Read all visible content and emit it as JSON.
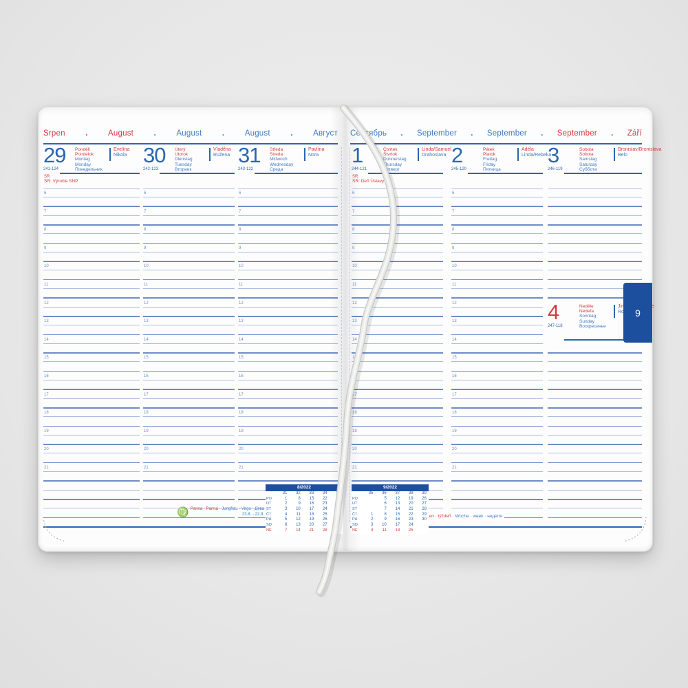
{
  "left_page": {
    "months": [
      {
        "t": "Srpen",
        "c": "red"
      },
      {
        "t": "August",
        "c": "red"
      },
      {
        "t": "August",
        "c": "blue"
      },
      {
        "t": "August",
        "c": "blue"
      },
      {
        "t": "Август",
        "c": "blue"
      }
    ],
    "days": [
      {
        "num": "29",
        "doy": "241-124",
        "marker": "SR",
        "local": [
          "Pondělí",
          "Pondelok"
        ],
        "intl": [
          "Montag",
          "Monday",
          "Понедельник"
        ],
        "name_cz": "Evelína",
        "name_sk": "Nikola",
        "holiday": "SR: Výročie SNP",
        "col": 0,
        "pos": "full",
        "numbered": true,
        "red": false
      },
      {
        "num": "30",
        "doy": "242-123",
        "local": [
          "Úterý",
          "Utorok"
        ],
        "intl": [
          "Dienstag",
          "Tuesday",
          "Вторник"
        ],
        "name_cz": "Vladěna",
        "name_sk": "Ružena",
        "col": 1,
        "pos": "full",
        "numbered": true,
        "red": false
      },
      {
        "num": "31",
        "doy": "243-122",
        "local": [
          "Středa",
          "Streda"
        ],
        "intl": [
          "Mittwoch",
          "Wednesday",
          "Среда"
        ],
        "name_cz": "Pavlína",
        "name_sk": "Nora",
        "col": 2,
        "pos": "full",
        "numbered": true,
        "red": false
      }
    ],
    "zodiac": {
      "symbol": "♍",
      "red": "Panna · Panna",
      "blue": " · Jungfrau · Virgo · Дева",
      "dates": "23.8. - 22.9."
    },
    "mini_calendar": {
      "title": "8/2022",
      "weeks": [
        "31",
        "32",
        "33",
        "34",
        "35"
      ],
      "rows": [
        {
          "d": "PO",
          "n": [
            "1",
            "8",
            "15",
            "22",
            "29"
          ],
          "red": false
        },
        {
          "d": "ÚT",
          "n": [
            "2",
            "9",
            "16",
            "23",
            "30"
          ],
          "red": false
        },
        {
          "d": "ST",
          "n": [
            "3",
            "10",
            "17",
            "24",
            "31"
          ],
          "red": false
        },
        {
          "d": "ČT",
          "n": [
            "4",
            "11",
            "18",
            "25",
            ""
          ],
          "red": false
        },
        {
          "d": "PÁ",
          "n": [
            "5",
            "12",
            "19",
            "26",
            ""
          ],
          "red": false
        },
        {
          "d": "SO",
          "n": [
            "6",
            "13",
            "20",
            "27",
            ""
          ],
          "red": false
        },
        {
          "d": "NE",
          "n": [
            "7",
            "14",
            "21",
            "28",
            ""
          ],
          "red": true
        }
      ]
    }
  },
  "right_page": {
    "months": [
      {
        "t": "Сентябрь",
        "c": "blue"
      },
      {
        "t": "September",
        "c": "blue"
      },
      {
        "t": "September",
        "c": "blue"
      },
      {
        "t": "September",
        "c": "red"
      },
      {
        "t": "Září",
        "c": "red"
      }
    ],
    "days": [
      {
        "num": "1",
        "doy": "244-121",
        "marker": "SR",
        "local": [
          "Čtvrtek",
          "Štvrtok"
        ],
        "intl": [
          "Donnerstag",
          "Thursday",
          "Четверг"
        ],
        "name_cz": "Linda/Samuel",
        "name_sk": "Drahoslava",
        "holiday": "SR: Deň Ústavy SR",
        "col": 0,
        "pos": "full",
        "numbered": true,
        "red": false
      },
      {
        "num": "2",
        "doy": "245-120",
        "local": [
          "Pátek",
          "Piatok"
        ],
        "intl": [
          "Freitag",
          "Friday",
          "Пятница"
        ],
        "name_cz": "Adéla",
        "name_sk": "Linda/Rebeka",
        "col": 1,
        "pos": "full",
        "numbered": true,
        "red": false
      },
      {
        "num": "3",
        "doy": "246-119",
        "local": [
          "Sobota",
          "Sobota"
        ],
        "intl": [
          "Samstag",
          "Saturday",
          "Суббота"
        ],
        "name_cz": "Bronislav/Bronislava",
        "name_sk": "Belo",
        "col": 2,
        "pos": "top",
        "numbered": false,
        "red": false
      },
      {
        "num": "4",
        "doy": "247-118",
        "local": [
          "Neděle",
          "Nedeľa"
        ],
        "intl": [
          "Sonntag",
          "Sunday",
          "Воскресенье"
        ],
        "name_cz": "Jindřiška/Rozálie",
        "name_sk": "Rozália",
        "col": 2,
        "pos": "bottom",
        "numbered": false,
        "red": true
      }
    ],
    "week_label": {
      "red": "35. týden · týždeň",
      "blue": " · Woche · week · неделя"
    },
    "month_tab": "9",
    "mini_calendar": {
      "title": "9/2022",
      "weeks": [
        "35",
        "36",
        "37",
        "38",
        "39"
      ],
      "rows": [
        {
          "d": "PO",
          "n": [
            "",
            "5",
            "12",
            "19",
            "26"
          ],
          "red": false
        },
        {
          "d": "ÚT",
          "n": [
            "",
            "6",
            "13",
            "20",
            "27"
          ],
          "red": false
        },
        {
          "d": "ST",
          "n": [
            "",
            "7",
            "14",
            "21",
            "28"
          ],
          "red": false
        },
        {
          "d": "ČT",
          "n": [
            "1",
            "8",
            "15",
            "22",
            "29"
          ],
          "red": false
        },
        {
          "d": "PÁ",
          "n": [
            "2",
            "9",
            "16",
            "23",
            "30"
          ],
          "red": false
        },
        {
          "d": "SO",
          "n": [
            "3",
            "10",
            "17",
            "24",
            ""
          ],
          "red": false
        },
        {
          "d": "NE",
          "n": [
            "4",
            "11",
            "18",
            "25",
            ""
          ],
          "red": true
        }
      ]
    }
  },
  "hours": {
    "start": 6,
    "end": 21
  }
}
